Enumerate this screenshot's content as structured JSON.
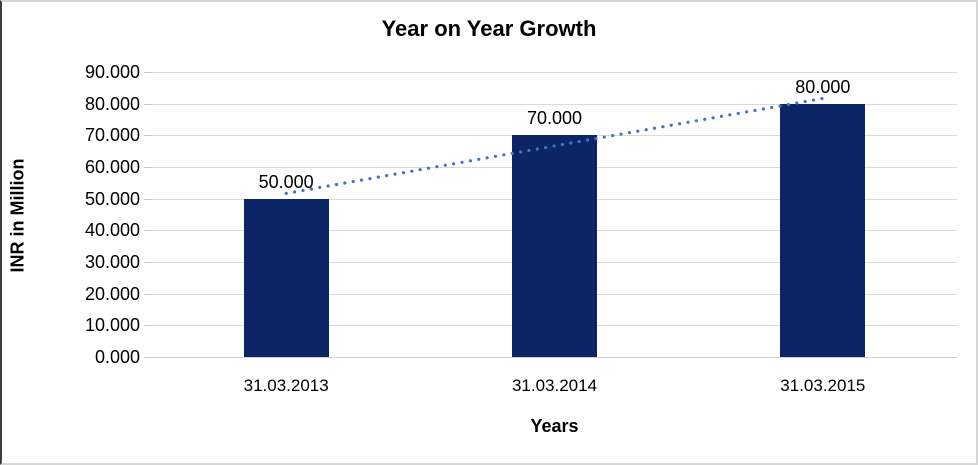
{
  "frame": {
    "background": "#ffffff",
    "border_color": "#d6d6d6",
    "border_left_color": "#3f3f3f"
  },
  "chart_data": {
    "type": "bar",
    "title": "Year on Year Growth",
    "xlabel": "Years",
    "ylabel": "INR in Million",
    "categories": [
      "31.03.2013",
      "31.03.2014",
      "31.03.2015"
    ],
    "values": [
      50,
      70,
      80
    ],
    "value_labels": [
      "50.000",
      "70.000",
      "80.000"
    ],
    "ylim": [
      0,
      90
    ],
    "ytick_step": 10,
    "ytick_labels": [
      "0.000",
      "10.000",
      "20.000",
      "30.000",
      "40.000",
      "50.000",
      "60.000",
      "70.000",
      "80.000",
      "90.000"
    ],
    "grid": true,
    "legend": "none",
    "bar_color": "#0c2566",
    "gridline_color": "#d9d9d9",
    "axis_line_color": "#d2d2d2",
    "tick_color": "#c9c9c9",
    "trendline": {
      "type": "linear",
      "style": "round-dotted",
      "color": "#4472c4",
      "values_at_categories": [
        51.667,
        66.667,
        81.667
      ]
    }
  }
}
